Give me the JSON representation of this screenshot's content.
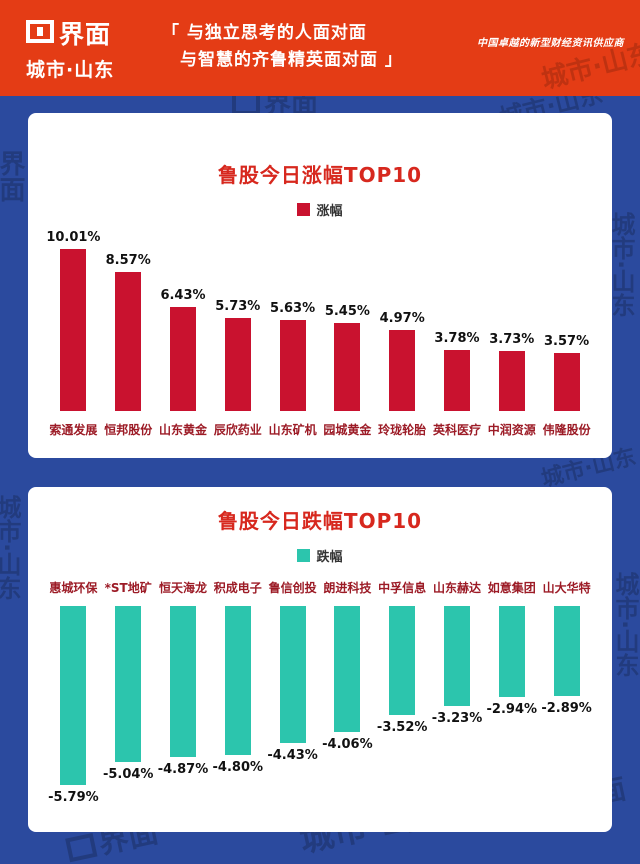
{
  "header": {
    "brand": "界面",
    "brand_sub": "城市·山东",
    "quote_line1": "「 与独立思考的人面对面",
    "quote_line2": "与智慧的齐鲁精英面对面 」",
    "tagline": "中国卓越的新型财经资讯供应商"
  },
  "watermark": {
    "brand": "界面",
    "city": "城市·山东"
  },
  "colors": {
    "header_bg": "#e43c15",
    "page_bg": "#2b4a9e",
    "card_bg": "#ffffff",
    "title_red": "#d7281e",
    "gain_bar": "#c9122f",
    "loss_bar": "#2cc5ad",
    "category_text": "#9c1b26",
    "value_text": "#111111"
  },
  "chart_data": [
    {
      "type": "bar",
      "direction": "up",
      "title": "鲁股今日涨幅TOP10",
      "legend": "涨幅",
      "bar_color": "#c9122f",
      "categories": [
        "索通发展",
        "恒邦股份",
        "山东黄金",
        "辰欣药业",
        "山东矿机",
        "园城黄金",
        "玲珑轮胎",
        "英科医疗",
        "中润资源",
        "伟隆股份"
      ],
      "values": [
        10.01,
        8.57,
        6.43,
        5.73,
        5.63,
        5.45,
        4.97,
        3.78,
        3.73,
        3.57
      ],
      "labels": [
        "10.01%",
        "8.57%",
        "6.43%",
        "5.73%",
        "5.63%",
        "5.45%",
        "4.97%",
        "3.78%",
        "3.73%",
        "3.57%"
      ],
      "value_suffix": "%",
      "ylim": [
        0,
        10.5
      ],
      "grid": false,
      "legend_position": "top"
    },
    {
      "type": "bar",
      "direction": "down",
      "title": "鲁股今日跌幅TOP10",
      "legend": "跌幅",
      "bar_color": "#2cc5ad",
      "categories": [
        "惠城环保",
        "*ST地矿",
        "恒天海龙",
        "积成电子",
        "鲁信创投",
        "朗进科技",
        "中孚信息",
        "山东赫达",
        "如意集团",
        "山大华特"
      ],
      "values": [
        -5.79,
        -5.04,
        -4.87,
        -4.8,
        -4.43,
        -4.06,
        -3.52,
        -3.23,
        -2.94,
        -2.89
      ],
      "labels": [
        "-5.79%",
        "-5.04%",
        "-4.87%",
        "-4.80%",
        "-4.43%",
        "-4.06%",
        "-3.52%",
        "-3.23%",
        "-2.94%",
        "-2.89%"
      ],
      "value_suffix": "%",
      "ylim": [
        -6,
        0
      ],
      "grid": false,
      "legend_position": "top"
    }
  ]
}
